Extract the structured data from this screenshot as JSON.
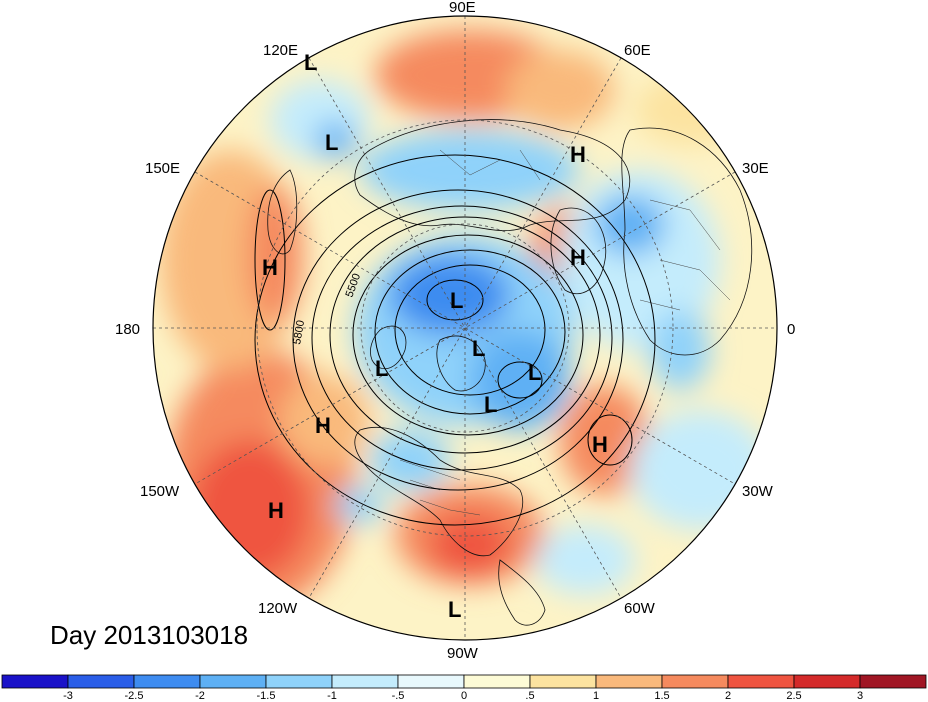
{
  "title": "Day 2013103018",
  "longitude_labels": [
    {
      "id": "lon-90e",
      "text": "90E"
    },
    {
      "id": "lon-60e",
      "text": "60E"
    },
    {
      "id": "lon-30e",
      "text": "30E"
    },
    {
      "id": "lon-0",
      "text": "0"
    },
    {
      "id": "lon-30w",
      "text": "30W"
    },
    {
      "id": "lon-60w",
      "text": "60W"
    },
    {
      "id": "lon-90w",
      "text": "90W"
    },
    {
      "id": "lon-120w",
      "text": "120W"
    },
    {
      "id": "lon-150w",
      "text": "150W"
    },
    {
      "id": "lon-180",
      "text": "180"
    },
    {
      "id": "lon-150e",
      "text": "150E"
    },
    {
      "id": "lon-120e",
      "text": "120E"
    }
  ],
  "contour_labels": [
    "5500",
    "5800"
  ],
  "pressure_systems": [
    {
      "type": "H"
    },
    {
      "type": "H"
    },
    {
      "type": "H"
    },
    {
      "type": "H"
    },
    {
      "type": "H"
    },
    {
      "type": "H"
    },
    {
      "type": "L"
    },
    {
      "type": "L"
    },
    {
      "type": "L"
    },
    {
      "type": "L"
    },
    {
      "type": "L"
    },
    {
      "type": "L"
    },
    {
      "type": "L"
    },
    {
      "type": "L"
    }
  ],
  "colorbar": {
    "colors": [
      "#1a12c8",
      "#2a5ee8",
      "#3e8cf0",
      "#5eb0f4",
      "#8fd2fa",
      "#c4ecfc",
      "#e8f8fc",
      "#fdfbd6",
      "#fce3a0",
      "#f9b97c",
      "#f58a5e",
      "#ef5440",
      "#d42a2a",
      "#a01624"
    ],
    "labels": [
      "-3",
      "-2.5",
      "-2",
      "-1.5",
      "-1",
      "-.5",
      "0",
      ".5",
      "1",
      "1.5",
      "2",
      "2.5",
      "3"
    ]
  }
}
